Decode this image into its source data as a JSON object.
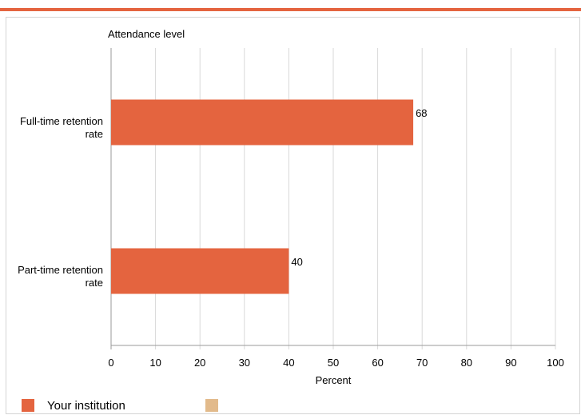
{
  "colors": {
    "accent": "#e4643f",
    "series1": "#e4643f",
    "series2": "#e2ba8b",
    "grid": "#d9d9d9"
  },
  "chart_data": {
    "type": "bar",
    "orientation": "horizontal",
    "axis_title": "Attendance level",
    "categories": [
      "Full-time retention rate",
      "Part-time retention rate"
    ],
    "series": [
      {
        "name": "Your institution",
        "values": [
          68,
          40
        ]
      }
    ],
    "data_labels": [
      "68",
      "40"
    ],
    "xlabel": "Percent",
    "xlim": [
      0,
      100
    ],
    "xticks": [
      0,
      10,
      20,
      30,
      40,
      50,
      60,
      70,
      80,
      90,
      100
    ],
    "grid": true,
    "legend": {
      "placement": "bottom-left",
      "entries": [
        "Your institution",
        ""
      ]
    }
  }
}
